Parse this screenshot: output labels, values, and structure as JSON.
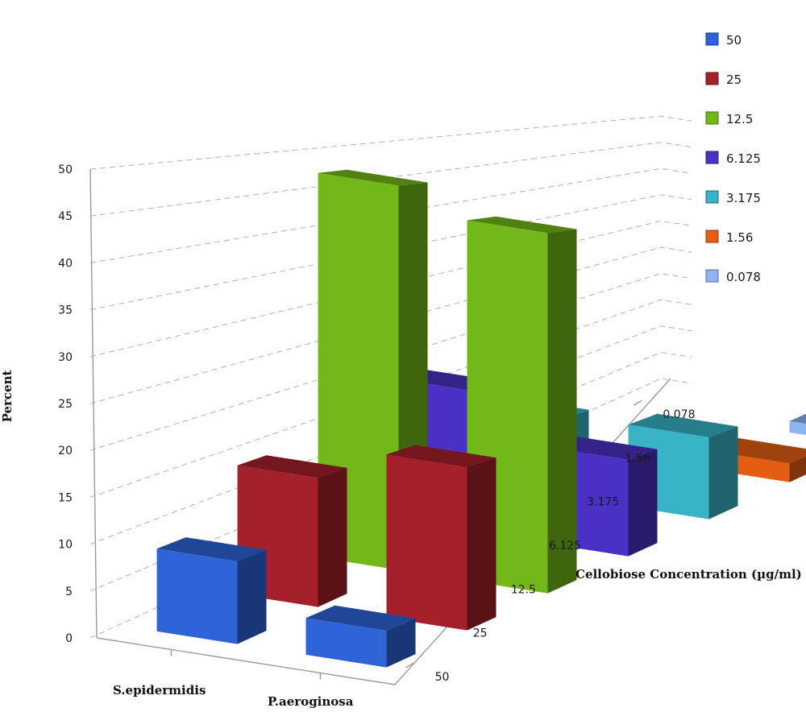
{
  "chart_data": {
    "type": "bar",
    "subtype": "3d-clustered-bar",
    "ylabel": "Percent",
    "zlabel": "Cellobiose Concentration (µg/ml)",
    "ylim": [
      0,
      50
    ],
    "yticks": [
      0,
      5,
      10,
      15,
      20,
      25,
      30,
      35,
      40,
      45,
      50
    ],
    "categories": [
      "S.epidermidis",
      "P.aeroginosa"
    ],
    "depth_categories": [
      "50",
      "25",
      "12.5",
      "6.125",
      "3.175",
      "1.56",
      "0.078"
    ],
    "grid": true,
    "legend_position": "right",
    "series": [
      {
        "name": "50",
        "color": "#2e64d8",
        "values": [
          9,
          4
        ]
      },
      {
        "name": "25",
        "color": "#a4202a",
        "values": [
          15,
          19
        ]
      },
      {
        "name": "12.5",
        "color": "#72b818",
        "values": [
          48,
          45
        ]
      },
      {
        "name": "6.125",
        "color": "#4a30c4",
        "values": [
          19,
          13
        ]
      },
      {
        "name": "3.175",
        "color": "#38b4c6",
        "values": [
          11,
          12
        ]
      },
      {
        "name": "1.56",
        "color": "#e45e12",
        "values": [
          0,
          3
        ]
      },
      {
        "name": "0.078",
        "color": "#8eb4f2",
        "values": [
          0,
          2
        ]
      }
    ]
  }
}
